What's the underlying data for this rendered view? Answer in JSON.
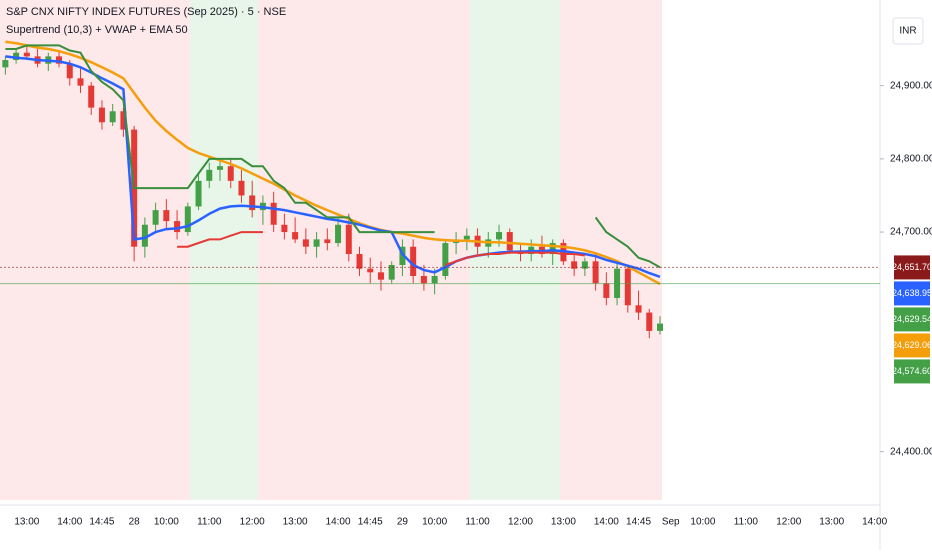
{
  "chart_data": {
    "type": "candlestick",
    "title": "S&P CNX NIFTY INDEX FUTURES (Sep 2025) · 5 · NSE",
    "subtitle": "Supertrend (10,3) + VWAP + EMA 50",
    "currency": "INR",
    "categories": [
      null,
      null,
      "13:00",
      null,
      null,
      null,
      "14:00",
      null,
      null,
      "14:45",
      null,
      null,
      "28",
      null,
      null,
      "10:00",
      null,
      null,
      null,
      "11:00",
      null,
      null,
      null,
      "12:00",
      null,
      null,
      null,
      "13:00",
      null,
      null,
      null,
      "14:00",
      null,
      null,
      "14:45",
      null,
      null,
      "29",
      null,
      null,
      "10:00",
      null,
      null,
      null,
      "11:00",
      null,
      null,
      null,
      "12:00",
      null,
      null,
      null,
      "13:00",
      null,
      null,
      null,
      "14:00",
      null,
      null,
      "14:45",
      null,
      null,
      "Sep",
      null,
      null,
      "10:00",
      null,
      null,
      null,
      "11:00",
      null,
      null,
      null,
      "12:00",
      null,
      null,
      null,
      "13:00",
      null,
      null,
      null,
      "14:00"
    ],
    "up_color": "#43a047",
    "down_color": "#e53935",
    "open": [
      24925,
      24935,
      24945,
      24940,
      24930,
      24940,
      24930,
      24910,
      24900,
      24870,
      24850,
      24865,
      24840,
      24680,
      24710,
      24730,
      24715,
      24700,
      24735,
      24770,
      24785,
      24790,
      24770,
      24750,
      24730,
      24740,
      24710,
      24700,
      24690,
      24680,
      24690,
      24685,
      24710,
      24670,
      24650,
      24645,
      24635,
      24655,
      24680,
      24640,
      24630,
      24640,
      24685,
      24690,
      24695,
      24680,
      24690,
      24700,
      24675,
      24670,
      24680,
      24670,
      24685,
      24660,
      24650,
      24660,
      24630,
      24610,
      24650,
      24600,
      24590,
      24565,
      null,
      null,
      null,
      null,
      null,
      null,
      null,
      null,
      null,
      null,
      null,
      null,
      null,
      null,
      null,
      null,
      null,
      null,
      null,
      null
    ],
    "high": [
      24940,
      24950,
      24955,
      24950,
      24945,
      24948,
      24935,
      24925,
      24905,
      24880,
      24875,
      24870,
      24845,
      24720,
      24740,
      24745,
      24730,
      24740,
      24780,
      24795,
      24800,
      24800,
      24785,
      24770,
      24750,
      24755,
      24725,
      24720,
      24705,
      24700,
      24705,
      24720,
      24725,
      24680,
      24665,
      24660,
      24660,
      24690,
      24690,
      24655,
      24650,
      24690,
      24700,
      24705,
      24705,
      24700,
      24710,
      24705,
      24685,
      24690,
      24695,
      24690,
      24690,
      24670,
      24665,
      24670,
      24645,
      24660,
      24655,
      24620,
      24595,
      24585,
      null,
      null,
      null,
      null,
      null,
      null,
      null,
      null,
      null,
      null,
      null,
      null,
      null,
      null,
      null,
      null,
      null,
      null,
      null,
      null
    ],
    "low": [
      24915,
      24930,
      24935,
      24925,
      24920,
      24925,
      24900,
      24890,
      24860,
      24840,
      24845,
      24830,
      24660,
      24665,
      24700,
      24705,
      24690,
      24695,
      24730,
      24760,
      24770,
      24760,
      24740,
      24720,
      24710,
      24700,
      24690,
      24685,
      24670,
      24665,
      24675,
      24680,
      24660,
      24640,
      24630,
      24620,
      24630,
      24640,
      24630,
      24620,
      24615,
      24635,
      24670,
      24675,
      24670,
      24665,
      24680,
      24670,
      24660,
      24660,
      24665,
      24655,
      24655,
      24640,
      24640,
      24620,
      24600,
      24600,
      24590,
      24580,
      24555,
      24560,
      null,
      null,
      null,
      null,
      null,
      null,
      null,
      null,
      null,
      null,
      null,
      null,
      null,
      null,
      null,
      null,
      null,
      null,
      null,
      null
    ],
    "close": [
      24935,
      24945,
      24940,
      24930,
      24940,
      24930,
      24910,
      24900,
      24870,
      24850,
      24865,
      24840,
      24680,
      24710,
      24730,
      24715,
      24700,
      24735,
      24770,
      24785,
      24790,
      24770,
      24750,
      24730,
      24740,
      24710,
      24700,
      24690,
      24680,
      24690,
      24685,
      24710,
      24670,
      24650,
      24645,
      24635,
      24655,
      24680,
      24640,
      24630,
      24640,
      24685,
      24690,
      24695,
      24680,
      24690,
      24700,
      24675,
      24670,
      24680,
      24670,
      24685,
      24660,
      24650,
      24660,
      24630,
      24610,
      24650,
      24600,
      24590,
      24565,
      24575,
      null,
      null,
      null,
      null,
      null,
      null,
      null,
      null,
      null,
      null,
      null,
      null,
      null,
      null,
      null,
      null,
      null,
      null,
      null,
      null
    ],
    "series": [
      {
        "color": "#f59e0b",
        "values": [
          24960,
          24958,
          24955,
          24952,
          24950,
          24947,
          24943,
          24938,
          24932,
          24925,
          24918,
          24910,
          24890,
          24870,
          24852,
          24838,
          24826,
          24815,
          24808,
          24803,
          24798,
          24793,
          24787,
          24780,
          24773,
          24766,
          24758,
          24750,
          24743,
          24736,
          24730,
          24724,
          24718,
          24712,
          24707,
          24703,
          24700,
          24698,
          24695,
          24692,
          24690,
          24689,
          24688,
          24688,
          24687,
          24686,
          24686,
          24685,
          24684,
          24683,
          24682,
          24681,
          24680,
          24678,
          24675,
          24671,
          24666,
          24660,
          24653,
          24645,
          24637,
          24629.06,
          null,
          null,
          null,
          null,
          null,
          null,
          null,
          null,
          null,
          null,
          null,
          null,
          null,
          null,
          null,
          null,
          null,
          null,
          null,
          null
        ]
      },
      {
        "color": "#2962ff",
        "values": [
          24940,
          24938,
          24937,
          24935,
          24934,
          24933,
          24930,
          24925,
          24918,
          24910,
          24903,
          24895,
          24690,
          24692,
          24700,
          24704,
          24705,
          24708,
          24716,
          24725,
          24732,
          24735,
          24736,
          24735,
          24734,
          24732,
          24730,
          24727,
          24724,
          24721,
          24718,
          24716,
          24713,
          24710,
          24706,
          24702,
          24700,
          24670,
          24655,
          24648,
          24645,
          24652,
          24660,
          24665,
          24668,
          24670,
          24672,
          24673,
          24673,
          24674,
          24674,
          24675,
          24674,
          24672,
          24670,
          24667,
          24662,
          24658,
          24654,
          24650,
          24644,
          24638.95,
          null,
          null,
          null,
          null,
          null,
          null,
          null,
          null,
          null,
          null,
          null,
          null,
          null,
          null,
          null,
          null,
          null,
          null,
          null,
          null
        ]
      },
      {
        "color": "#388e3c",
        "values": [
          24950,
          24950,
          24955,
          24955,
          24955,
          24955,
          24948,
          24945,
          24920,
          24905,
          24895,
          24880,
          24760,
          24760,
          24760,
          24760,
          24760,
          24760,
          24780,
          24800,
          24800,
          24800,
          24800,
          24790,
          24790,
          24770,
          24760,
          24740,
          24740,
          24730,
          24720,
          24720,
          24720,
          24700,
          24700,
          24700,
          24700,
          24700,
          24700,
          24700,
          24700,
          null,
          null,
          null,
          null,
          null,
          null,
          null,
          null,
          null,
          null,
          null,
          null,
          null,
          null,
          24720,
          24700,
          24690,
          24680,
          24665,
          24660,
          24651.7,
          null,
          null,
          null,
          null,
          null,
          null,
          null,
          null,
          null,
          null,
          null,
          null,
          null,
          null,
          null,
          null,
          null,
          null,
          null,
          null
        ]
      },
      {
        "color": "#e53935",
        "values": [
          null,
          null,
          null,
          null,
          null,
          null,
          null,
          null,
          null,
          null,
          null,
          null,
          null,
          null,
          null,
          null,
          24680,
          24680,
          24685,
          24690,
          24690,
          24695,
          24700,
          24700,
          24700,
          null,
          null,
          null,
          null,
          null,
          null,
          null,
          null,
          null,
          null,
          null,
          null,
          null,
          null,
          null,
          null,
          24655,
          24660,
          24665,
          24668,
          24670,
          24670,
          24672,
          24672,
          24672,
          24672,
          24672,
          24670,
          24670,
          24668,
          null,
          null,
          null,
          null,
          null,
          null,
          null,
          null,
          null,
          null,
          null,
          null,
          null,
          null,
          null,
          null,
          null,
          null,
          null,
          null,
          null,
          null,
          null,
          null,
          null,
          null,
          null
        ]
      }
    ],
    "price_labels": [
      {
        "value": 24651.7,
        "label": "24,651.70",
        "color": "#8b1a1a",
        "line": true
      },
      {
        "value": 24638.95,
        "label": "24,638.95",
        "color": "#2962ff"
      },
      {
        "value": 24629.54,
        "label": "24,629.54",
        "color": "#43a047",
        "line": true
      },
      {
        "value": 24629.06,
        "label": "24,629.06",
        "color": "#f59e0b"
      },
      {
        "value": 24574.6,
        "label": "24,574.60",
        "color": "#43a047"
      }
    ],
    "ylim": [
      24334,
      25017
    ],
    "yticks": [
      {
        "value": 24900,
        "label": "24,900.00"
      },
      {
        "value": 24800,
        "label": "24,800.00"
      },
      {
        "value": 24700,
        "label": "24,700.00"
      },
      {
        "value": 24400,
        "label": "24,400.00"
      }
    ]
  }
}
